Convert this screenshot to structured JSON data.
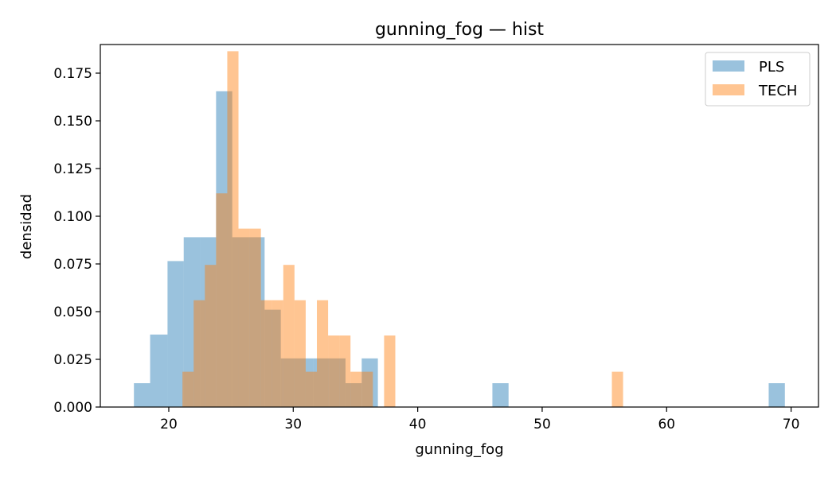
{
  "chart_data": {
    "type": "bar",
    "title": "gunning_fog — hist",
    "xlabel": "gunning_fog",
    "ylabel": "densidad",
    "xlim": [
      14.5,
      72.2
    ],
    "ylim": [
      0,
      0.19
    ],
    "xticks": [
      20,
      30,
      40,
      50,
      60,
      70
    ],
    "yticks": [
      0.0,
      0.025,
      0.05,
      0.075,
      0.1,
      0.125,
      0.15,
      0.175
    ],
    "legend_position": "top-right",
    "series": [
      {
        "name": "PLS",
        "color": "#1f77b4",
        "opacity": 0.45,
        "bins": [
          {
            "x0": 17.2,
            "x1": 18.5,
            "value": 0.0125
          },
          {
            "x0": 18.5,
            "x1": 19.9,
            "value": 0.038
          },
          {
            "x0": 19.9,
            "x1": 21.2,
            "value": 0.0765
          },
          {
            "x0": 21.2,
            "x1": 22.5,
            "value": 0.089
          },
          {
            "x0": 22.5,
            "x1": 23.8,
            "value": 0.089
          },
          {
            "x0": 23.8,
            "x1": 25.1,
            "value": 0.1655
          },
          {
            "x0": 25.1,
            "x1": 26.4,
            "value": 0.089
          },
          {
            "x0": 26.4,
            "x1": 27.7,
            "value": 0.089
          },
          {
            "x0": 27.7,
            "x1": 29.0,
            "value": 0.051
          },
          {
            "x0": 29.0,
            "x1": 30.3,
            "value": 0.0255
          },
          {
            "x0": 30.3,
            "x1": 31.6,
            "value": 0.0255
          },
          {
            "x0": 31.6,
            "x1": 32.9,
            "value": 0.0255
          },
          {
            "x0": 32.9,
            "x1": 34.2,
            "value": 0.0255
          },
          {
            "x0": 34.2,
            "x1": 35.5,
            "value": 0.0125
          },
          {
            "x0": 35.5,
            "x1": 36.8,
            "value": 0.0255
          },
          {
            "x0": 46.0,
            "x1": 47.3,
            "value": 0.0125
          },
          {
            "x0": 68.2,
            "x1": 69.5,
            "value": 0.0125
          }
        ]
      },
      {
        "name": "TECH",
        "color": "#ff7f0e",
        "opacity": 0.45,
        "bins": [
          {
            "x0": 21.1,
            "x1": 22.0,
            "value": 0.0185
          },
          {
            "x0": 22.0,
            "x1": 22.9,
            "value": 0.056
          },
          {
            "x0": 22.9,
            "x1": 23.8,
            "value": 0.0745
          },
          {
            "x0": 23.8,
            "x1": 24.7,
            "value": 0.112
          },
          {
            "x0": 24.7,
            "x1": 25.6,
            "value": 0.1865
          },
          {
            "x0": 25.6,
            "x1": 26.5,
            "value": 0.0935
          },
          {
            "x0": 26.5,
            "x1": 27.4,
            "value": 0.0935
          },
          {
            "x0": 27.4,
            "x1": 28.3,
            "value": 0.056
          },
          {
            "x0": 28.3,
            "x1": 29.2,
            "value": 0.056
          },
          {
            "x0": 29.2,
            "x1": 30.1,
            "value": 0.0745
          },
          {
            "x0": 30.1,
            "x1": 31.0,
            "value": 0.056
          },
          {
            "x0": 31.0,
            "x1": 31.9,
            "value": 0.0185
          },
          {
            "x0": 31.9,
            "x1": 32.8,
            "value": 0.056
          },
          {
            "x0": 32.8,
            "x1": 33.7,
            "value": 0.0375
          },
          {
            "x0": 33.7,
            "x1": 34.6,
            "value": 0.0375
          },
          {
            "x0": 34.6,
            "x1": 35.5,
            "value": 0.0185
          },
          {
            "x0": 35.5,
            "x1": 36.4,
            "value": 0.0185
          },
          {
            "x0": 37.3,
            "x1": 38.2,
            "value": 0.0375
          },
          {
            "x0": 55.6,
            "x1": 56.5,
            "value": 0.0185
          }
        ]
      }
    ]
  }
}
